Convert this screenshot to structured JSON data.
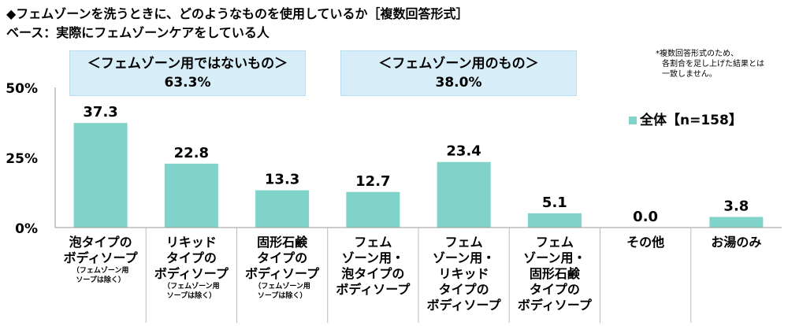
{
  "title": "◆フェムゾーンを洗うときに、どのようなものを使用しているか［複数回答形式］",
  "subtitle": "ベース：実際にフェムゾーンケアをしている人",
  "note": [
    "*複数回答形式のため、",
    "各割合を足し上げた結果とは",
    "一致しません。"
  ],
  "legend": {
    "label": "全体【n=158】",
    "color": "#7fd3c8"
  },
  "groups": [
    {
      "name": "＜フェムゾーン用ではないもの＞",
      "value": "63.3%"
    },
    {
      "name": "＜フェムゾーン用のもの＞",
      "value": "38.0%"
    }
  ],
  "chart_data": {
    "type": "bar",
    "categories": [
      "泡タイプのボディソープ（フェムゾーン用ソープは除く）",
      "リキッドタイプのボディソープ（フェムゾーン用ソープは除く）",
      "固形石鹸タイプのボディソープ（フェムゾーン用ソープは除く）",
      "フェムゾーン用・泡タイプのボディソープ",
      "フェムゾーン用・リキッドタイプのボディソープ",
      "フェムゾーン用・固形石鹸タイプのボディソープ",
      "その他",
      "お湯のみ"
    ],
    "series": [
      {
        "name": "全体【n=158】",
        "values": [
          37.3,
          22.8,
          13.3,
          12.7,
          23.4,
          5.1,
          0.0,
          3.8
        ]
      }
    ],
    "value_labels": [
      "37.3",
      "22.8",
      "13.3",
      "12.7",
      "23.4",
      "5.1",
      "0.0",
      "3.8"
    ],
    "yticks": [
      "0%",
      "25%",
      "50%"
    ],
    "ytick_values": [
      0,
      25,
      50
    ],
    "ylim": [
      0,
      50
    ],
    "bar_color": "#7fd3c8",
    "grid": false,
    "legend_position": "right"
  },
  "category_labels": [
    {
      "main": [
        "泡タイプの",
        "ボディソープ"
      ],
      "sub": [
        "（フェムゾーン用",
        "ソープは除く）"
      ]
    },
    {
      "main": [
        "リキッド",
        "タイプの",
        "ボディソープ"
      ],
      "sub": [
        "（フェムゾーン用",
        "ソープは除く）"
      ]
    },
    {
      "main": [
        "固形石鹸",
        "タイプの",
        "ボディソープ"
      ],
      "sub": [
        "（フェムゾーン用",
        "ソープは除く）"
      ]
    },
    {
      "main": [
        "フェム",
        "ゾーン用・",
        "泡タイプの",
        "ボディソープ"
      ],
      "sub": []
    },
    {
      "main": [
        "フェム",
        "ゾーン用・",
        "リキッド",
        "タイプの",
        "ボディソープ"
      ],
      "sub": []
    },
    {
      "main": [
        "フェム",
        "ゾーン用・",
        "固形石鹸",
        "タイプの",
        "ボディソープ"
      ],
      "sub": []
    },
    {
      "main": [
        "その他"
      ],
      "sub": []
    },
    {
      "main": [
        "お湯のみ"
      ],
      "sub": []
    }
  ]
}
